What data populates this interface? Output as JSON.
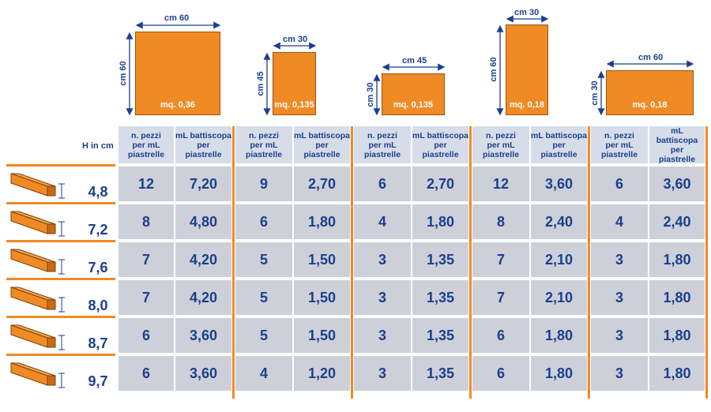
{
  "tiles": [
    {
      "width_label": "cm 60",
      "height_label": "cm 60",
      "area": "mq. 0,36"
    },
    {
      "width_label": "cm 30",
      "height_label": "cm 45",
      "area": "mq. 0,135"
    },
    {
      "width_label": "cm 45",
      "height_label": "cm 30",
      "area": "mq. 0,135"
    },
    {
      "width_label": "cm  30",
      "height_label": "cm 60",
      "area": "mq. 0,18"
    },
    {
      "width_label": "cm 60",
      "height_label": "cm 30",
      "area": "mq. 0,18"
    }
  ],
  "table": {
    "h_label": "H in cm",
    "col_headers": {
      "pieces": "n. pezzi\nper mL\npiastrelle",
      "meters": "mL battiscopa\nper\npiastrelle"
    },
    "rows": [
      {
        "h": "4,8",
        "values": [
          "12",
          "7,20",
          "9",
          "2,70",
          "6",
          "2,70",
          "12",
          "3,60",
          "6",
          "3,60"
        ]
      },
      {
        "h": "7,2",
        "values": [
          "8",
          "4,80",
          "6",
          "1,80",
          "4",
          "1,80",
          "8",
          "2,40",
          "4",
          "2,40"
        ]
      },
      {
        "h": "7,6",
        "values": [
          "7",
          "4,20",
          "5",
          "1,50",
          "3",
          "1,35",
          "7",
          "2,10",
          "3",
          "1,80"
        ]
      },
      {
        "h": "8,0",
        "values": [
          "7",
          "4,20",
          "5",
          "1,50",
          "3",
          "1,35",
          "7",
          "2,10",
          "3",
          "1,80"
        ]
      },
      {
        "h": "8,7",
        "values": [
          "6",
          "3,60",
          "5",
          "1,50",
          "3",
          "1,35",
          "6",
          "1,80",
          "3",
          "1,80"
        ]
      },
      {
        "h": "9,7",
        "values": [
          "6",
          "3,60",
          "4",
          "1,20",
          "3",
          "1,35",
          "6",
          "1,80",
          "3",
          "1,80"
        ]
      }
    ]
  },
  "colors": {
    "orange": "#f08a24",
    "navy": "#1b3f8f",
    "cell": "#cdd0d8",
    "header": "#d6dde8"
  }
}
